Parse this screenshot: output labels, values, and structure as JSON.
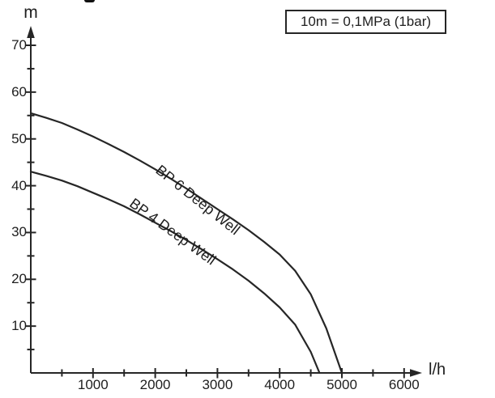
{
  "figure": {
    "background": "#ffffff",
    "ink_color": "#262626"
  },
  "pressure_note": {
    "text": "10m = 0,1MPa (1bar)"
  },
  "axes": {
    "y_unit": "m",
    "x_unit": "l/h"
  },
  "chart_data": {
    "type": "line",
    "title": "",
    "xlabel": "l/h",
    "ylabel": "m",
    "xlim": [
      0,
      6800
    ],
    "ylim": [
      0,
      75
    ],
    "grid": false,
    "legend_position": "labels-along-curves",
    "annotation": "10m = 0,1MPa (1bar)",
    "x_major_ticks": [
      1000,
      2000,
      3000,
      4000,
      5000,
      6000
    ],
    "x_minor_ticks": [
      500,
      1500,
      2500,
      3500,
      4500,
      5500
    ],
    "y_major_ticks": [
      10,
      20,
      30,
      40,
      50,
      60,
      70
    ],
    "y_minor_ticks": [
      5,
      15,
      25,
      35,
      45,
      55,
      65
    ],
    "series": [
      {
        "name": "BP 6 Deep Well",
        "points": [
          [
            0,
            55.5
          ],
          [
            250,
            54.5
          ],
          [
            500,
            53.4
          ],
          [
            750,
            52.0
          ],
          [
            1000,
            50.5
          ],
          [
            1250,
            48.9
          ],
          [
            1500,
            47.2
          ],
          [
            1750,
            45.4
          ],
          [
            2000,
            43.5
          ],
          [
            2250,
            41.5
          ],
          [
            2500,
            39.4
          ],
          [
            2750,
            37.2
          ],
          [
            3000,
            35.0
          ],
          [
            3250,
            32.8
          ],
          [
            3500,
            30.5
          ],
          [
            3750,
            28.0
          ],
          [
            4000,
            25.3
          ],
          [
            4250,
            21.8
          ],
          [
            4500,
            16.8
          ],
          [
            4750,
            9.5
          ],
          [
            5000,
            0
          ]
        ]
      },
      {
        "name": "BP 4 Deep Well",
        "points": [
          [
            0,
            43.0
          ],
          [
            250,
            42.1
          ],
          [
            500,
            41.1
          ],
          [
            750,
            39.9
          ],
          [
            1000,
            38.5
          ],
          [
            1250,
            37.1
          ],
          [
            1500,
            35.6
          ],
          [
            1750,
            33.9
          ],
          [
            2000,
            32.1
          ],
          [
            2250,
            30.3
          ],
          [
            2500,
            28.4
          ],
          [
            2750,
            26.4
          ],
          [
            3000,
            24.3
          ],
          [
            3250,
            22.1
          ],
          [
            3500,
            19.7
          ],
          [
            3750,
            17.0
          ],
          [
            4000,
            14.0
          ],
          [
            4250,
            10.3
          ],
          [
            4500,
            4.5
          ],
          [
            4640,
            0
          ]
        ]
      }
    ]
  }
}
